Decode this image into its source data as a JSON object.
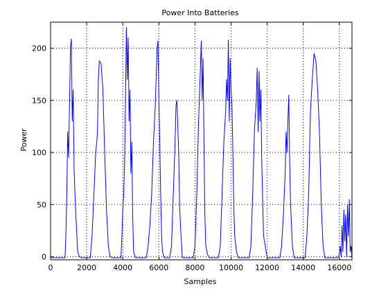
{
  "chart_data": {
    "type": "line",
    "title": "Power Into Batteries",
    "xlabel": "Samples",
    "ylabel": "Power",
    "xlim": [
      0,
      16700
    ],
    "ylim": [
      -3,
      225
    ],
    "xticks": [
      0,
      2000,
      4000,
      6000,
      8000,
      10000,
      12000,
      14000,
      16000
    ],
    "yticks": [
      0,
      50,
      100,
      150,
      200
    ],
    "grid": true,
    "series_color": "#0000ff",
    "series": [
      {
        "x": [
          0,
          800,
          850,
          900,
          950,
          1000,
          1050,
          1100,
          1150,
          1200,
          1250,
          1300,
          1350,
          1400,
          1500,
          1600,
          1700,
          2200,
          2300,
          2400,
          2500,
          2550,
          2600,
          2650,
          2700,
          2800,
          2900,
          3000,
          3100,
          3200,
          3300,
          3400,
          3900,
          3950,
          4000,
          4050,
          4100,
          4150,
          4200,
          4250,
          4300,
          4350,
          4400,
          4450,
          4500,
          4550,
          4600,
          4700,
          5300,
          5400,
          5500,
          5600,
          5700,
          5800,
          5900,
          5950,
          6000,
          6050,
          6100,
          6150,
          6200,
          6300,
          6600,
          6700,
          6800,
          6900,
          6950,
          7000,
          7050,
          7100,
          7150,
          7200,
          7300,
          7900,
          8000,
          8100,
          8200,
          8300,
          8350,
          8400,
          8450,
          8500,
          8550,
          8600,
          8700,
          8800,
          9300,
          9400,
          9500,
          9600,
          9700,
          9750,
          9800,
          9850,
          9900,
          9950,
          10000,
          10050,
          10100,
          10150,
          10200,
          10300,
          10400,
          11000,
          11100,
          11200,
          11300,
          11400,
          11450,
          11500,
          11550,
          11600,
          11650,
          11700,
          11800,
          12000,
          12700,
          12800,
          12900,
          13000,
          13050,
          13100,
          13150,
          13200,
          13250,
          13300,
          13400,
          13500,
          14100,
          14200,
          14300,
          14400,
          14500,
          14600,
          14700,
          14800,
          14900,
          15000,
          15100,
          15200,
          15900,
          16000,
          16050,
          16100,
          16150,
          16200,
          16250,
          16300,
          16350,
          16400,
          16450,
          16500,
          16550,
          16600,
          16650,
          16700
        ],
        "y": [
          -1,
          -1,
          20,
          60,
          120,
          95,
          150,
          200,
          209,
          130,
          160,
          85,
          60,
          40,
          5,
          0,
          -1,
          -1,
          20,
          60,
          100,
          108,
          120,
          170,
          188,
          185,
          160,
          100,
          45,
          10,
          0,
          -1,
          -1,
          20,
          45,
          60,
          90,
          150,
          220,
          170,
          210,
          130,
          160,
          80,
          110,
          40,
          5,
          -1,
          -1,
          10,
          30,
          60,
          110,
          145,
          200,
          207,
          150,
          110,
          60,
          20,
          5,
          -1,
          -1,
          10,
          60,
          110,
          145,
          150,
          125,
          100,
          50,
          30,
          -1,
          -1,
          10,
          60,
          130,
          180,
          207,
          150,
          190,
          110,
          40,
          10,
          2,
          -1,
          -1,
          10,
          60,
          110,
          140,
          170,
          150,
          208,
          130,
          190,
          160,
          145,
          100,
          50,
          20,
          5,
          -1,
          -1,
          10,
          60,
          122,
          150,
          181,
          120,
          178,
          130,
          160,
          90,
          20,
          -1,
          -1,
          10,
          40,
          80,
          120,
          100,
          130,
          155,
          90,
          50,
          10,
          -1,
          -1,
          20,
          60,
          140,
          170,
          195,
          188,
          160,
          120,
          50,
          10,
          -1,
          -1,
          2,
          10,
          0,
          30,
          5,
          45,
          15,
          40,
          0,
          50,
          20,
          55,
          5,
          10,
          -1
        ]
      }
    ]
  }
}
